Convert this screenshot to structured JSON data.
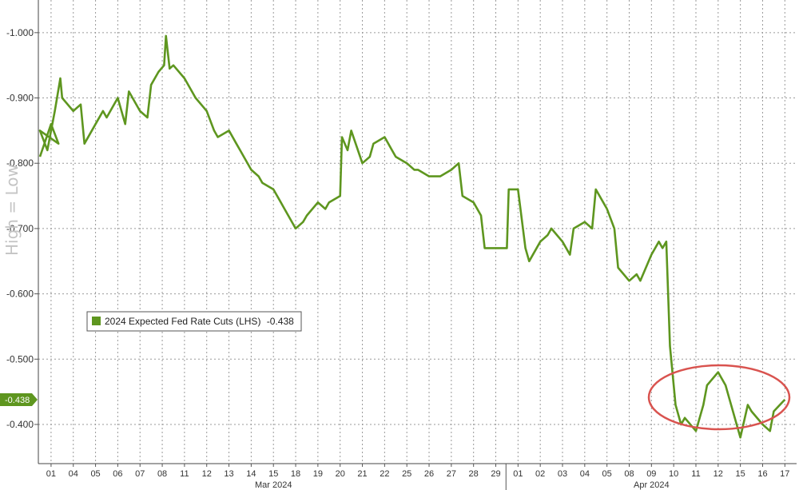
{
  "chart_data": {
    "type": "line",
    "series": [
      {
        "name": "2024 Expected Fed Rate Cuts (LHS)",
        "last_value": "-0.438",
        "color": "#5e961f",
        "points": [
          [
            "2024-02-29",
            -0.81
          ],
          [
            "2024-02-29T12",
            -0.86
          ],
          [
            "2024-02-29T20",
            -0.83
          ],
          [
            "2024-03-01",
            -0.85
          ],
          [
            "2024-03-01T08",
            -0.82
          ],
          [
            "2024-03-01T16",
            -0.88
          ],
          [
            "2024-03-01T22",
            -0.93
          ],
          [
            "2024-03-04",
            -0.9
          ],
          [
            "2024-03-04T12",
            -0.88
          ],
          [
            "2024-03-04T20",
            -0.89
          ],
          [
            "2024-03-05",
            -0.83
          ],
          [
            "2024-03-05T12",
            -0.86
          ],
          [
            "2024-03-05T20",
            -0.88
          ],
          [
            "2024-03-06",
            -0.87
          ],
          [
            "2024-03-06T12",
            -0.9
          ],
          [
            "2024-03-06T20",
            -0.86
          ],
          [
            "2024-03-07",
            -0.91
          ],
          [
            "2024-03-07T12",
            -0.88
          ],
          [
            "2024-03-07T20",
            -0.87
          ],
          [
            "2024-03-08",
            -0.92
          ],
          [
            "2024-03-08T08",
            -0.94
          ],
          [
            "2024-03-08T14",
            -0.95
          ],
          [
            "2024-03-08T16",
            -0.995
          ],
          [
            "2024-03-08T20",
            -0.945
          ],
          [
            "2024-03-11",
            -0.95
          ],
          [
            "2024-03-11T12",
            -0.93
          ],
          [
            "2024-03-11T20",
            -0.91
          ],
          [
            "2024-03-12",
            -0.9
          ],
          [
            "2024-03-12T12",
            -0.88
          ],
          [
            "2024-03-12T20",
            -0.85
          ],
          [
            "2024-03-13",
            -0.84
          ],
          [
            "2024-03-13T12",
            -0.85
          ],
          [
            "2024-03-13T20",
            -0.83
          ],
          [
            "2024-03-14",
            -0.82
          ],
          [
            "2024-03-14T12",
            -0.79
          ],
          [
            "2024-03-14T20",
            -0.78
          ],
          [
            "2024-03-15",
            -0.77
          ],
          [
            "2024-03-15T12",
            -0.76
          ],
          [
            "2024-03-15T20",
            -0.74
          ],
          [
            "2024-03-18",
            -0.73
          ],
          [
            "2024-03-18T12",
            -0.7
          ],
          [
            "2024-03-18T20",
            -0.71
          ],
          [
            "2024-03-19",
            -0.72
          ],
          [
            "2024-03-19T12",
            -0.74
          ],
          [
            "2024-03-19T20",
            -0.73
          ],
          [
            "2024-03-20",
            -0.74
          ],
          [
            "2024-03-20T12",
            -0.75
          ],
          [
            "2024-03-20T14",
            -0.84
          ],
          [
            "2024-03-20T20",
            -0.82
          ],
          [
            "2024-03-21",
            -0.85
          ],
          [
            "2024-03-21T12",
            -0.8
          ],
          [
            "2024-03-21T20",
            -0.81
          ],
          [
            "2024-03-22",
            -0.83
          ],
          [
            "2024-03-22T12",
            -0.84
          ],
          [
            "2024-03-22T20",
            -0.82
          ],
          [
            "2024-03-25",
            -0.81
          ],
          [
            "2024-03-25T12",
            -0.8
          ],
          [
            "2024-03-25T20",
            -0.79
          ],
          [
            "2024-03-26",
            -0.79
          ],
          [
            "2024-03-26T12",
            -0.78
          ],
          [
            "2024-03-26T20",
            -0.78
          ],
          [
            "2024-03-27",
            -0.78
          ],
          [
            "2024-03-27T12",
            -0.79
          ],
          [
            "2024-03-27T20",
            -0.8
          ],
          [
            "2024-03-28",
            -0.75
          ],
          [
            "2024-03-28T12",
            -0.74
          ],
          [
            "2024-03-28T20",
            -0.72
          ],
          [
            "2024-03-29",
            -0.67
          ],
          [
            "2024-03-29T20",
            -0.67
          ],
          [
            "2024-04-01",
            -0.67
          ],
          [
            "2024-04-01T02",
            -0.76
          ],
          [
            "2024-04-01T12",
            -0.76
          ],
          [
            "2024-04-01T20",
            -0.67
          ],
          [
            "2024-04-02",
            -0.65
          ],
          [
            "2024-04-02T12",
            -0.68
          ],
          [
            "2024-04-02T20",
            -0.69
          ],
          [
            "2024-04-03",
            -0.7
          ],
          [
            "2024-04-03T12",
            -0.68
          ],
          [
            "2024-04-03T20",
            -0.66
          ],
          [
            "2024-04-04",
            -0.7
          ],
          [
            "2024-04-04T12",
            -0.71
          ],
          [
            "2024-04-04T20",
            -0.7
          ],
          [
            "2024-04-05",
            -0.76
          ],
          [
            "2024-04-05T12",
            -0.73
          ],
          [
            "2024-04-05T20",
            -0.7
          ],
          [
            "2024-04-08",
            -0.64
          ],
          [
            "2024-04-08T12",
            -0.62
          ],
          [
            "2024-04-08T20",
            -0.63
          ],
          [
            "2024-04-09",
            -0.62
          ],
          [
            "2024-04-09T12",
            -0.66
          ],
          [
            "2024-04-09T20",
            -0.68
          ],
          [
            "2024-04-10",
            -0.67
          ],
          [
            "2024-04-10T04",
            -0.68
          ],
          [
            "2024-04-10T08",
            -0.52
          ],
          [
            "2024-04-10T14",
            -0.43
          ],
          [
            "2024-04-10T20",
            -0.4
          ],
          [
            "2024-04-11",
            -0.41
          ],
          [
            "2024-04-11T12",
            -0.39
          ],
          [
            "2024-04-11T20",
            -0.43
          ],
          [
            "2024-04-12",
            -0.46
          ],
          [
            "2024-04-12T12",
            -0.48
          ],
          [
            "2024-04-12T20",
            -0.46
          ],
          [
            "2024-04-15",
            -0.44
          ],
          [
            "2024-04-15T12",
            -0.38
          ],
          [
            "2024-04-15T20",
            -0.43
          ],
          [
            "2024-04-16",
            -0.42
          ],
          [
            "2024-04-16T12",
            -0.4
          ],
          [
            "2024-04-16T20",
            -0.39
          ],
          [
            "2024-04-17",
            -0.42
          ],
          [
            "2024-04-17T12",
            -0.438
          ]
        ]
      }
    ],
    "yticks": [
      "-0.400",
      "-0.500",
      "-0.600",
      "-0.700",
      "-0.800",
      "-0.900",
      "-1.000"
    ],
    "ylim": [
      -1.05,
      -0.34
    ],
    "y_inverted": true,
    "y_scale_label": "High = Low",
    "xticks": [
      [
        "2024-02-29",
        "01"
      ],
      [
        "2024-03-04",
        "04"
      ],
      [
        "2024-03-05",
        "05"
      ],
      [
        "2024-03-06",
        "06"
      ],
      [
        "2024-03-07",
        "07"
      ],
      [
        "2024-03-08",
        "08"
      ],
      [
        "2024-03-11",
        "11"
      ],
      [
        "2024-03-12",
        "12"
      ],
      [
        "2024-03-13",
        "13"
      ],
      [
        "2024-03-14",
        "14"
      ],
      [
        "2024-03-15",
        "15"
      ],
      [
        "2024-03-18",
        "18"
      ],
      [
        "2024-03-19",
        "19"
      ],
      [
        "2024-03-20",
        "20"
      ],
      [
        "2024-03-21",
        "21"
      ],
      [
        "2024-03-22",
        "22"
      ],
      [
        "2024-03-25",
        "25"
      ],
      [
        "2024-03-26",
        "26"
      ],
      [
        "2024-03-27",
        "27"
      ],
      [
        "2024-03-28",
        "28"
      ],
      [
        "2024-03-29",
        "29"
      ],
      [
        "2024-04-01",
        "01"
      ],
      [
        "2024-04-02",
        "02"
      ],
      [
        "2024-04-03",
        "03"
      ],
      [
        "2024-04-04",
        "04"
      ],
      [
        "2024-04-05",
        "05"
      ],
      [
        "2024-04-08",
        "08"
      ],
      [
        "2024-04-09",
        "09"
      ],
      [
        "2024-04-10",
        "10"
      ],
      [
        "2024-04-11",
        "11"
      ],
      [
        "2024-04-12",
        "12"
      ],
      [
        "2024-04-15",
        "15"
      ],
      [
        "2024-04-16",
        "16"
      ],
      [
        "2024-04-17",
        "17"
      ]
    ],
    "months": [
      {
        "label": "Mar 2024",
        "at": "2024-03-15"
      },
      {
        "label": "Apr 2024",
        "at": "2024-04-09"
      }
    ],
    "month_divider_at": "2024-03-29T23",
    "legend_position": "center-left",
    "grid": true,
    "annotation": {
      "type": "ellipse",
      "color": "#d9534f",
      "around": [
        "2024-04-10",
        "2024-04-17"
      ]
    }
  }
}
